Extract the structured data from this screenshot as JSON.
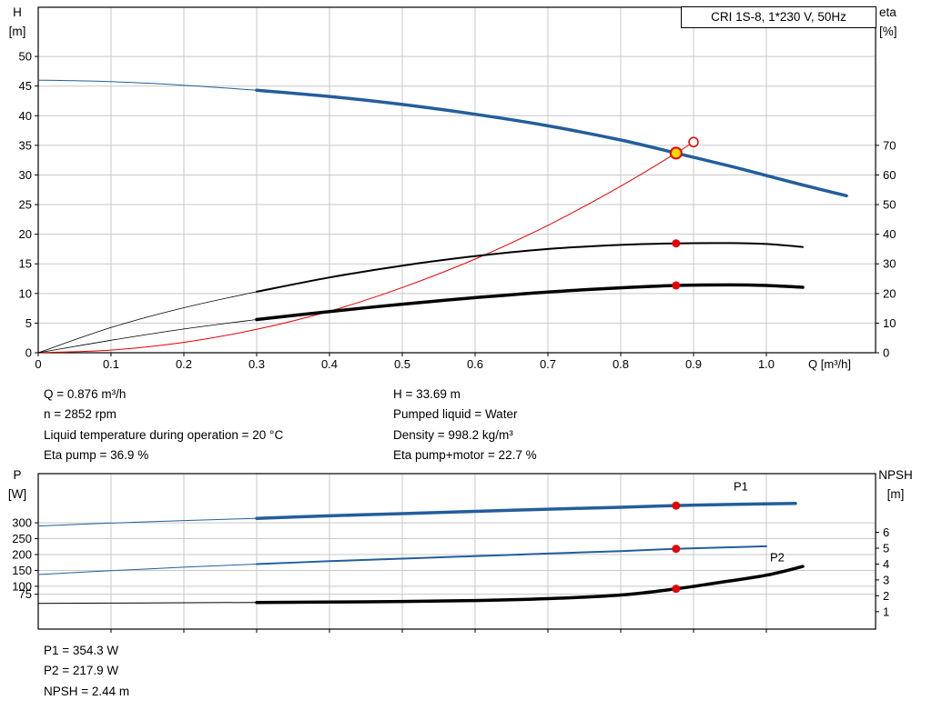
{
  "title_box": "CRI 1S-8, 1*230 V, 50Hz",
  "info": {
    "top_left": [
      "Q = 0.876 m³/h",
      "n = 2852 rpm",
      "Liquid temperature during operation = 20 °C",
      "Eta pump = 36.9 %"
    ],
    "top_right": [
      "H = 33.69 m",
      "Pumped liquid = Water",
      "Density = 998.2 kg/m³",
      "Eta pump+motor = 22.7 %"
    ],
    "bottom": [
      "P1 = 354.3 W",
      "P2 = 217.9 W",
      "NPSH = 2.44 m"
    ]
  },
  "colors": {
    "curve_blue": "#235e9c",
    "curve_black": "#000000",
    "curve_red": "#e60000",
    "duty_yellow": "#ffd800",
    "grid": "#c8c8c8"
  },
  "chart_data": [
    {
      "type": "line",
      "title": "CRI 1S-8, 1*230 V, 50Hz",
      "x_axis": {
        "label": "Q [m³/h]",
        "min": 0,
        "max": 1.15,
        "ticks": [
          0,
          0.1,
          0.2,
          0.3,
          0.4,
          0.5,
          0.6,
          0.7,
          0.8,
          0.9,
          1.0
        ],
        "show_tick_labels": true
      },
      "y_left": {
        "name": "H",
        "unit": "[m]",
        "min": 0,
        "max": 58.3,
        "ticks": [
          0,
          5,
          10,
          15,
          20,
          25,
          30,
          35,
          40,
          45,
          50
        ]
      },
      "y_right": {
        "name": "eta",
        "unit": "[%]",
        "min": 0,
        "max": 116.6,
        "ticks": [
          0,
          10,
          20,
          30,
          40,
          50,
          60,
          70
        ]
      },
      "series": [
        {
          "name": "head-curve-lead",
          "axis": "left",
          "color": "#235e9c",
          "width": 1,
          "points": [
            [
              0,
              46
            ],
            [
              0.1,
              45.75
            ],
            [
              0.2,
              45.15
            ],
            [
              0.3,
              44.3
            ]
          ]
        },
        {
          "name": "head-curve",
          "axis": "left",
          "color": "#235e9c",
          "width": 3.5,
          "points": [
            [
              0.3,
              44.3
            ],
            [
              0.4,
              43.25
            ],
            [
              0.5,
              41.9
            ],
            [
              0.6,
              40.25
            ],
            [
              0.7,
              38.3
            ],
            [
              0.8,
              35.9
            ],
            [
              0.876,
              33.69
            ],
            [
              0.95,
              31.5
            ],
            [
              1.0,
              29.9
            ],
            [
              1.05,
              28.3
            ],
            [
              1.11,
              26.5
            ]
          ]
        },
        {
          "name": "system-curve",
          "axis": "left",
          "color": "#e60000",
          "width": 1,
          "points": [
            [
              0,
              0
            ],
            [
              0.1,
              0.45
            ],
            [
              0.2,
              1.75
            ],
            [
              0.3,
              3.95
            ],
            [
              0.4,
              7.0
            ],
            [
              0.5,
              11.0
            ],
            [
              0.6,
              15.8
            ],
            [
              0.7,
              21.5
            ],
            [
              0.8,
              28.1
            ],
            [
              0.876,
              33.69
            ],
            [
              0.9,
              35.55
            ]
          ]
        },
        {
          "name": "eta-pump-lead",
          "axis": "right",
          "color": "#000000",
          "width": 0.8,
          "points": [
            [
              0,
              0
            ],
            [
              0.1,
              8.5
            ],
            [
              0.2,
              15.2
            ],
            [
              0.3,
              20.6
            ]
          ]
        },
        {
          "name": "eta-pump",
          "axis": "right",
          "color": "#000000",
          "width": 2,
          "points": [
            [
              0.3,
              20.6
            ],
            [
              0.4,
              25.4
            ],
            [
              0.5,
              29.4
            ],
            [
              0.6,
              32.6
            ],
            [
              0.7,
              35.0
            ],
            [
              0.8,
              36.4
            ],
            [
              0.876,
              36.9
            ],
            [
              0.95,
              37.0
            ],
            [
              1.0,
              36.7
            ],
            [
              1.05,
              35.7
            ]
          ]
        },
        {
          "name": "eta-pump-motor-lead",
          "axis": "right",
          "color": "#000000",
          "width": 0.8,
          "points": [
            [
              0,
              0
            ],
            [
              0.1,
              4.2
            ],
            [
              0.2,
              8.0
            ],
            [
              0.3,
              11.2
            ]
          ]
        },
        {
          "name": "eta-pump-motor",
          "axis": "right",
          "color": "#000000",
          "width": 3.5,
          "points": [
            [
              0.3,
              11.2
            ],
            [
              0.4,
              13.9
            ],
            [
              0.5,
              16.4
            ],
            [
              0.6,
              18.6
            ],
            [
              0.7,
              20.5
            ],
            [
              0.8,
              21.9
            ],
            [
              0.876,
              22.7
            ],
            [
              0.95,
              22.9
            ],
            [
              1.0,
              22.7
            ],
            [
              1.05,
              22.1
            ]
          ]
        }
      ],
      "markers": [
        {
          "name": "requested-duty-open",
          "x": 0.9,
          "y": 35.55,
          "axis": "left",
          "r": 5,
          "fill": "#ffffff",
          "stroke": "#e60000",
          "sw": 1.5
        },
        {
          "name": "duty-point",
          "x": 0.876,
          "y": 33.69,
          "axis": "left",
          "r": 6,
          "fill": "#ffd800",
          "stroke": "#e60000",
          "sw": 2
        },
        {
          "name": "eta-pump-duty",
          "x": 0.876,
          "y": 36.9,
          "axis": "right",
          "r": 4.5,
          "fill": "#e60000"
        },
        {
          "name": "eta-pump-motor-duty",
          "x": 0.876,
          "y": 22.7,
          "axis": "right",
          "r": 4.5,
          "fill": "#e60000"
        }
      ],
      "notes": []
    },
    {
      "type": "line",
      "title": "",
      "x_axis": {
        "label": "",
        "min": 0,
        "max": 1.15,
        "ticks": [
          0.1,
          0.2,
          0.3,
          0.4,
          0.5,
          0.6,
          0.7,
          0.8,
          0.9,
          1.0
        ],
        "show_tick_labels": false
      },
      "y_left": {
        "name": "P",
        "unit": "[W]",
        "min": -35,
        "max": 455,
        "ticks": [
          75,
          100,
          150,
          200,
          250,
          300
        ]
      },
      "y_right": {
        "name": "NPSH",
        "unit": "[m]",
        "min": -0.1,
        "max": 9.7,
        "ticks": [
          1,
          2,
          3,
          4,
          5,
          6
        ]
      },
      "series": [
        {
          "name": "p1-lead",
          "axis": "left",
          "color": "#235e9c",
          "width": 1,
          "points": [
            [
              0,
              290
            ],
            [
              0.1,
              299
            ],
            [
              0.2,
              307
            ],
            [
              0.3,
              314
            ]
          ]
        },
        {
          "name": "p1",
          "axis": "left",
          "color": "#235e9c",
          "width": 3.5,
          "points": [
            [
              0.3,
              314
            ],
            [
              0.4,
              322
            ],
            [
              0.5,
              329
            ],
            [
              0.6,
              336
            ],
            [
              0.7,
              343
            ],
            [
              0.8,
              349
            ],
            [
              0.876,
              354.3
            ],
            [
              0.95,
              358
            ],
            [
              1.04,
              361
            ]
          ]
        },
        {
          "name": "p2-lead",
          "axis": "left",
          "color": "#235e9c",
          "width": 1,
          "points": [
            [
              0,
              137
            ],
            [
              0.1,
              149
            ],
            [
              0.2,
              160
            ],
            [
              0.3,
              170
            ]
          ]
        },
        {
          "name": "p2",
          "axis": "left",
          "color": "#235e9c",
          "width": 2,
          "points": [
            [
              0.3,
              170
            ],
            [
              0.4,
              179
            ],
            [
              0.5,
              187
            ],
            [
              0.6,
              195
            ],
            [
              0.7,
              203
            ],
            [
              0.8,
              211
            ],
            [
              0.876,
              217.9
            ],
            [
              0.95,
              223
            ],
            [
              1.0,
              226
            ]
          ]
        },
        {
          "name": "npsh-lead",
          "axis": "right",
          "color": "#000000",
          "width": 1,
          "points": [
            [
              0,
              1.52
            ],
            [
              0.15,
              1.55
            ],
            [
              0.3,
              1.58
            ]
          ]
        },
        {
          "name": "npsh",
          "axis": "right",
          "color": "#000000",
          "width": 3.5,
          "points": [
            [
              0.3,
              1.58
            ],
            [
              0.45,
              1.62
            ],
            [
              0.6,
              1.7
            ],
            [
              0.7,
              1.82
            ],
            [
              0.8,
              2.05
            ],
            [
              0.876,
              2.44
            ],
            [
              0.93,
              2.8
            ],
            [
              1.0,
              3.3
            ],
            [
              1.05,
              3.85
            ]
          ]
        }
      ],
      "markers": [
        {
          "name": "p1-duty",
          "x": 0.876,
          "y": 354.3,
          "axis": "left",
          "r": 4.5,
          "fill": "#e60000"
        },
        {
          "name": "p2-duty",
          "x": 0.876,
          "y": 217.9,
          "axis": "left",
          "r": 4.5,
          "fill": "#e60000"
        },
        {
          "name": "npsh-duty",
          "x": 0.876,
          "y": 2.44,
          "axis": "right",
          "r": 4.5,
          "fill": "#e60000"
        }
      ],
      "notes": [
        {
          "text": "P1",
          "x": 0.955,
          "y": 402,
          "axis": "left",
          "color": "#235e9c"
        },
        {
          "text": "P2",
          "x": 1.005,
          "y": 178,
          "axis": "left",
          "color": "#235e9c"
        }
      ]
    }
  ]
}
